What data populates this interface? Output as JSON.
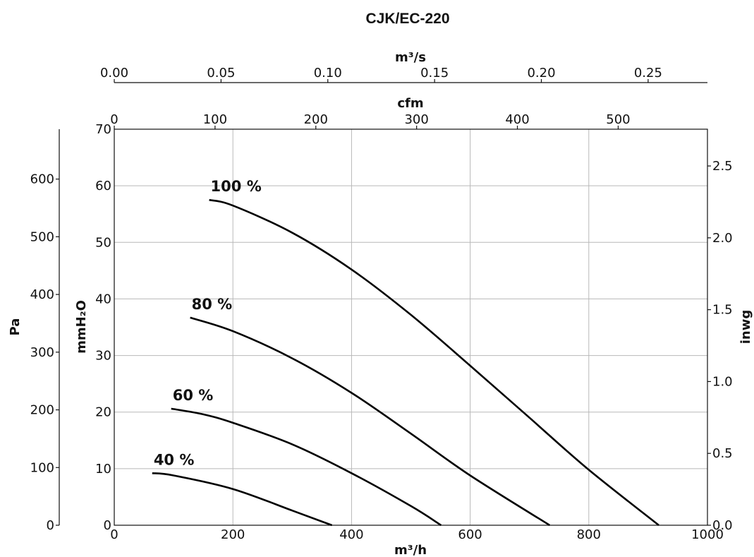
{
  "chart_data": {
    "type": "line",
    "title": "CJK/EC-220",
    "xlabel": "m³/h",
    "xlim": [
      0,
      1000
    ],
    "x_ticks": [
      "0",
      "200",
      "400",
      "600",
      "800",
      "1000"
    ],
    "y_label_mmh2o": "mmH₂O",
    "y_ticks_mmh2o": [
      "0",
      "10",
      "20",
      "30",
      "40",
      "50",
      "60",
      "70"
    ],
    "ylim_mmh2o": [
      0,
      70
    ],
    "y_label_pa": "Pa",
    "y_ticks_pa": [
      "0",
      "100",
      "200",
      "300",
      "400",
      "500",
      "600"
    ],
    "y_label_inwg": "inwg",
    "y_ticks_inwg": [
      "0.0",
      "0.5",
      "1.0",
      "1.5",
      "2.0",
      "2.5"
    ],
    "top_label_cfm": "cfm",
    "top_ticks_cfm": [
      "0",
      "100",
      "200",
      "300",
      "400",
      "500"
    ],
    "top_label_m3s": "m³/s",
    "top_ticks_m3s": [
      "0.00",
      "0.05",
      "0.10",
      "0.15",
      "0.20",
      "0.25"
    ],
    "grid": true,
    "series": [
      {
        "name": "100 %",
        "x": [
          160,
          200,
          300,
          400,
          500,
          600,
          700,
          800,
          918
        ],
        "y": [
          57.5,
          56.5,
          51.7,
          45.2,
          37.2,
          28.2,
          19.0,
          9.8,
          0
        ]
      },
      {
        "name": "80 %",
        "x": [
          128,
          200,
          300,
          400,
          500,
          600,
          734
        ],
        "y": [
          36.7,
          34.3,
          29.5,
          23.4,
          16.2,
          8.8,
          0
        ]
      },
      {
        "name": "60 %",
        "x": [
          96,
          150,
          200,
          300,
          400,
          500,
          551
        ],
        "y": [
          20.6,
          19.6,
          18.1,
          14.3,
          9.2,
          3.4,
          0
        ]
      },
      {
        "name": "40 %",
        "x": [
          64,
          100,
          200,
          300,
          367
        ],
        "y": [
          9.2,
          8.8,
          6.4,
          2.6,
          0
        ]
      }
    ]
  }
}
